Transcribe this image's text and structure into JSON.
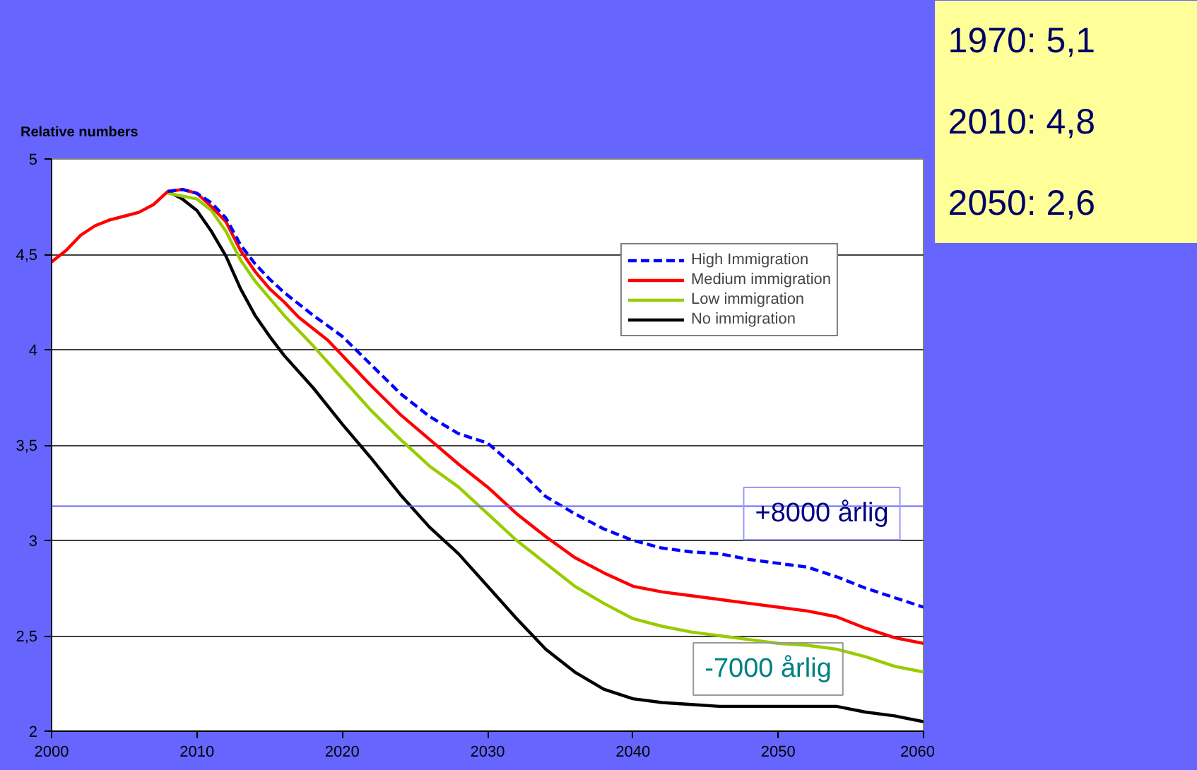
{
  "chart_data": {
    "type": "line",
    "ylabel": "Relative numbers",
    "xlim": [
      2000,
      2060
    ],
    "xticks": [
      2000,
      2010,
      2020,
      2030,
      2040,
      2050,
      2060
    ],
    "ylim": [
      2,
      5
    ],
    "yticks": [
      2,
      {
        "value": 2.5,
        "label": "2,5"
      },
      3,
      {
        "value": 3.5,
        "label": "3,5"
      },
      4,
      {
        "value": 4.5,
        "label": "4,5"
      },
      5
    ],
    "grid": "y",
    "legend": "top right",
    "series": [
      {
        "name": "High Immigration",
        "color": "#0000ff",
        "line_style": "dashed",
        "x": [
          2008,
          2009,
          2010,
          2011,
          2012,
          2013,
          2014,
          2015,
          2016,
          2018,
          2020,
          2022,
          2024,
          2026,
          2028,
          2030,
          2032,
          2034,
          2036,
          2038,
          2040,
          2042,
          2044,
          2046,
          2048,
          2050,
          2052,
          2054,
          2056,
          2058,
          2060
        ],
        "values": [
          4.83,
          4.84,
          4.82,
          4.77,
          4.69,
          4.55,
          4.45,
          4.37,
          4.3,
          4.18,
          4.07,
          3.92,
          3.77,
          3.65,
          3.56,
          3.51,
          3.38,
          3.23,
          3.14,
          3.06,
          3.0,
          2.96,
          2.94,
          2.93,
          2.9,
          2.88,
          2.86,
          2.81,
          2.75,
          2.7,
          2.65
        ]
      },
      {
        "name": "Medium immigration",
        "color": "#ff0000",
        "line_style": "solid",
        "x": [
          2000,
          2001,
          2002,
          2003,
          2004,
          2005,
          2006,
          2007,
          2008,
          2009,
          2010,
          2011,
          2012,
          2013,
          2014,
          2015,
          2016,
          2017,
          2018,
          2019,
          2020,
          2022,
          2024,
          2026,
          2028,
          2030,
          2032,
          2034,
          2036,
          2038,
          2040,
          2042,
          2044,
          2046,
          2048,
          2050,
          2052,
          2054,
          2056,
          2058,
          2060
        ],
        "values": [
          4.46,
          4.52,
          4.6,
          4.65,
          4.68,
          4.7,
          4.72,
          4.76,
          4.83,
          4.84,
          4.82,
          4.75,
          4.67,
          4.52,
          4.41,
          4.32,
          4.25,
          4.17,
          4.11,
          4.05,
          3.97,
          3.81,
          3.66,
          3.53,
          3.4,
          3.28,
          3.14,
          3.02,
          2.91,
          2.83,
          2.76,
          2.73,
          2.71,
          2.69,
          2.67,
          2.65,
          2.63,
          2.6,
          2.54,
          2.49,
          2.46
        ]
      },
      {
        "name": "Low immigration",
        "color": "#99cc00",
        "line_style": "solid",
        "x": [
          2008,
          2010,
          2011,
          2012,
          2013,
          2014,
          2015,
          2016,
          2018,
          2020,
          2022,
          2024,
          2026,
          2028,
          2030,
          2032,
          2034,
          2036,
          2038,
          2040,
          2042,
          2044,
          2046,
          2048,
          2050,
          2052,
          2054,
          2056,
          2058,
          2060
        ],
        "values": [
          4.82,
          4.79,
          4.73,
          4.62,
          4.47,
          4.36,
          4.27,
          4.18,
          4.02,
          3.85,
          3.68,
          3.53,
          3.39,
          3.28,
          3.14,
          3.0,
          2.88,
          2.76,
          2.67,
          2.59,
          2.55,
          2.52,
          2.5,
          2.48,
          2.46,
          2.45,
          2.43,
          2.39,
          2.34,
          2.31
        ]
      },
      {
        "name": "No immigration",
        "color": "#000000",
        "line_style": "solid",
        "x": [
          2008,
          2009,
          2010,
          2011,
          2012,
          2013,
          2014,
          2015,
          2016,
          2018,
          2020,
          2022,
          2024,
          2026,
          2028,
          2030,
          2032,
          2034,
          2036,
          2038,
          2040,
          2042,
          2044,
          2046,
          2048,
          2050,
          2052,
          2054,
          2056,
          2058,
          2060
        ],
        "values": [
          4.83,
          4.79,
          4.73,
          4.62,
          4.49,
          4.32,
          4.18,
          4.07,
          3.97,
          3.8,
          3.61,
          3.43,
          3.24,
          3.07,
          2.93,
          2.76,
          2.59,
          2.43,
          2.31,
          2.22,
          2.17,
          2.15,
          2.14,
          2.13,
          2.13,
          2.13,
          2.13,
          2.13,
          2.1,
          2.08,
          2.05
        ]
      }
    ],
    "ref_lines": [
      {
        "axis": "y",
        "value": 3.18,
        "color": "#6666ff"
      }
    ],
    "annotations": [
      "+8000 årlig",
      "-7000 årlig",
      "1970: 5,1",
      "2010: 4,8",
      "2050: 2,6"
    ]
  }
}
